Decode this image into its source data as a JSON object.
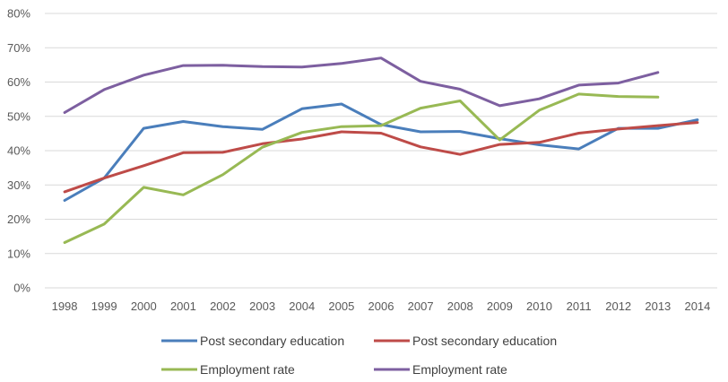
{
  "chart_data": {
    "type": "line",
    "title": "",
    "xlabel": "",
    "ylabel": "",
    "ylim": [
      0,
      80
    ],
    "y_ticks": [
      "0%",
      "10%",
      "20%",
      "30%",
      "40%",
      "50%",
      "60%",
      "70%",
      "80%"
    ],
    "grid": true,
    "legend_position": "bottom",
    "categories": [
      "1998",
      "1999",
      "2000",
      "2001",
      "2002",
      "2003",
      "2004",
      "2005",
      "2006",
      "2007",
      "2008",
      "2009",
      "2010",
      "2011",
      "2012",
      "2013",
      "2014"
    ],
    "series": [
      {
        "name": "Post secondary education",
        "color": "#4a7ebb",
        "values": [
          25.5,
          32.0,
          46.5,
          48.5,
          47.0,
          46.2,
          52.2,
          53.6,
          47.6,
          45.5,
          45.6,
          43.5,
          41.7,
          40.5,
          46.5,
          46.5,
          49.0
        ]
      },
      {
        "name": "Post secondary education",
        "color": "#be4b48",
        "values": [
          28.0,
          32.0,
          35.6,
          39.4,
          39.5,
          42.0,
          43.4,
          45.5,
          45.1,
          41.1,
          38.9,
          41.8,
          42.4,
          45.1,
          46.3,
          47.3,
          48.2
        ]
      },
      {
        "name": "Employment rate",
        "color": "#98b954",
        "values": [
          13.2,
          18.6,
          29.3,
          27.1,
          33.0,
          41.0,
          45.3,
          47.0,
          47.3,
          52.4,
          54.5,
          43.1,
          51.8,
          56.5,
          55.8,
          55.6,
          null
        ]
      },
      {
        "name": "Employment rate",
        "color": "#7d5fa0",
        "values": [
          51.1,
          57.8,
          62.0,
          64.8,
          64.9,
          64.5,
          64.4,
          65.4,
          67.0,
          60.2,
          57.9,
          53.1,
          55.1,
          59.1,
          59.7,
          62.8,
          null
        ]
      }
    ]
  }
}
